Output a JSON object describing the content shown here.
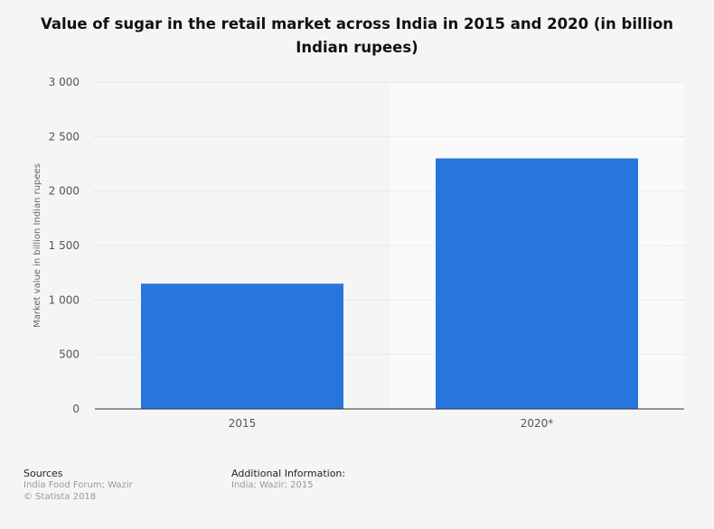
{
  "chart_data": {
    "type": "bar",
    "title": "Value of sugar in the retail market across India in 2015 and 2020 (in billion Indian rupees)",
    "categories": [
      "2015",
      "2020*"
    ],
    "values": [
      1150,
      2300
    ],
    "xlabel": "",
    "ylabel": "Market value in billion Indian rupees",
    "ylim": [
      0,
      3000
    ],
    "yticks": [
      0,
      500,
      1000,
      1500,
      2000,
      2500,
      3000
    ],
    "ytick_labels": [
      "0",
      "500",
      "1 000",
      "1 500",
      "2 000",
      "2 500",
      "3 000"
    ],
    "grid": true,
    "bar_color": "#2876dd"
  },
  "footer": {
    "sources_label": "Sources",
    "sources_text": "India Food Forum; Wazir",
    "copyright": "© Statista 2018",
    "additional_label": "Additional Information:",
    "additional_text": "India; Wazir; 2015"
  }
}
